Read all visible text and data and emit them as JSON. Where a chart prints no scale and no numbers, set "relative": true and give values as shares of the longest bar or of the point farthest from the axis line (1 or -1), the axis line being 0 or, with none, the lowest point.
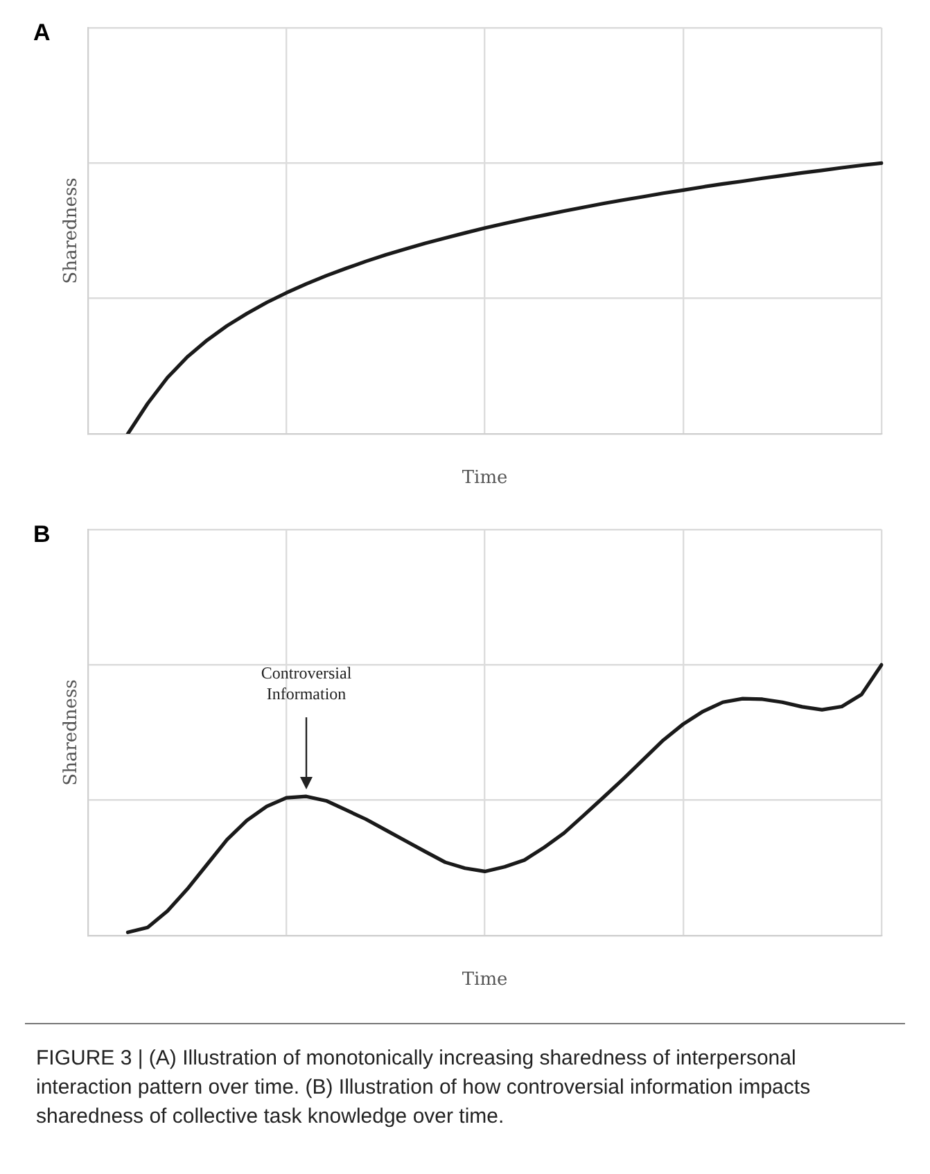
{
  "chart_data": [
    {
      "type": "line",
      "title": "A",
      "xlabel": "Time",
      "ylabel": "Sharedness",
      "relative": true,
      "grid": true,
      "line_style": "solid",
      "categories": [
        null,
        null,
        null,
        null,
        null,
        null,
        null,
        null,
        null,
        null,
        null,
        null,
        null,
        null,
        null,
        null,
        null,
        null,
        null,
        null,
        null,
        null,
        null,
        null,
        null,
        null,
        null,
        null,
        null,
        null,
        null,
        null,
        null,
        null,
        null,
        null,
        null,
        null,
        null,
        null,
        null
      ],
      "series": [
        {
          "color": "#1a1a1a",
          "values": [
            null,
            null,
            0,
            0.112,
            0.208,
            0.284,
            0.346,
            0.399,
            0.444,
            0.485,
            0.521,
            0.554,
            0.584,
            0.611,
            0.637,
            0.661,
            0.683,
            0.704,
            0.723,
            0.742,
            0.76,
            0.777,
            0.793,
            0.808,
            0.823,
            0.837,
            0.851,
            0.864,
            0.876,
            0.889,
            0.9,
            0.912,
            0.923,
            0.933,
            0.944,
            0.954,
            0.964,
            0.973,
            0.983,
            0.992,
            1.0
          ]
        }
      ]
    },
    {
      "type": "line",
      "title": "B",
      "xlabel": "Time",
      "ylabel": "Sharedness",
      "relative": true,
      "grid": true,
      "line_style": "solid",
      "categories": [
        null,
        null,
        null,
        null,
        null,
        null,
        null,
        null,
        null,
        null,
        null,
        null,
        null,
        null,
        null,
        null,
        null,
        null,
        null,
        null,
        null,
        null,
        null,
        null,
        null,
        null,
        null,
        null,
        null,
        null,
        null,
        null,
        null,
        null,
        null,
        null,
        null,
        null,
        null,
        null,
        null
      ],
      "series": [
        {
          "color": "#1a1a1a",
          "values": [
            null,
            null,
            0.012,
            0.03,
            0.091,
            0.172,
            0.263,
            0.354,
            0.425,
            0.477,
            0.509,
            0.514,
            0.498,
            0.464,
            0.43,
            0.39,
            0.35,
            0.31,
            0.271,
            0.249,
            0.237,
            0.254,
            0.279,
            0.326,
            0.379,
            0.445,
            0.512,
            0.58,
            0.651,
            0.722,
            0.781,
            0.828,
            0.862,
            0.875,
            0.873,
            0.862,
            0.845,
            0.834,
            0.846,
            0.891,
            1.0
          ]
        }
      ],
      "annotations": [
        {
          "text": "Controversial\nInformation",
          "y": 0.54
        },
        "FIGURE 3 | (A) Illustration of monotonically increasing sharedness of interpersonal interaction pattern over time. (B) Illustration of how controversial information impacts sharedness of collective task knowledge over time."
      ]
    }
  ]
}
